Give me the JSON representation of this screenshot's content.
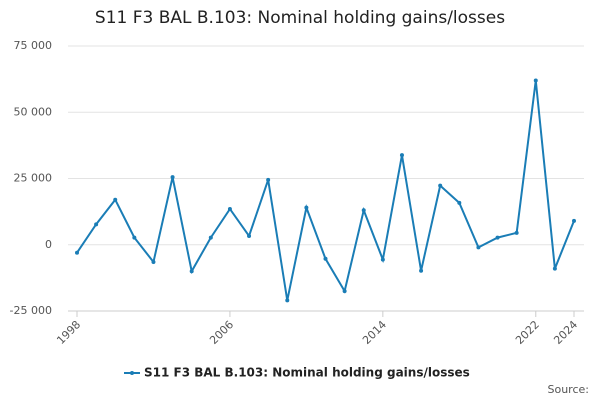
{
  "chart_data": {
    "type": "line",
    "title": "S11 F3 BAL B.103: Nominal holding gains/losses",
    "x": [
      1998,
      1999,
      2000,
      2001,
      2002,
      2003,
      2004,
      2005,
      2006,
      2007,
      2008,
      2009,
      2010,
      2011,
      2012,
      2013,
      2014,
      2015,
      2016,
      2017,
      2018,
      2019,
      2020,
      2021,
      2022,
      2023,
      2024
    ],
    "series": [
      {
        "name": "S11 F3 BAL B.103: Nominal holding gains/losses",
        "color": "#1a7db6",
        "values": [
          -3000,
          7700,
          17000,
          2700,
          -6500,
          25500,
          -10000,
          2700,
          13500,
          3300,
          24500,
          -21000,
          14000,
          -5300,
          -17500,
          13000,
          -5600,
          33800,
          -9800,
          22300,
          15800,
          -1000,
          2700,
          4500,
          62000,
          -9000,
          9000
        ]
      }
    ],
    "xlim": [
      1998,
      2024
    ],
    "xticks": [
      1998,
      2006,
      2014,
      2022,
      2024
    ],
    "ylim": [
      -25000,
      75000
    ],
    "yticks": [
      {
        "value": -25000,
        "label": "-25 000"
      },
      0,
      {
        "value": 25000,
        "label": "25 000"
      },
      {
        "value": 50000,
        "label": "50 000"
      },
      {
        "value": 75000,
        "label": "75 000"
      }
    ],
    "grid": true,
    "source": "Source:"
  }
}
